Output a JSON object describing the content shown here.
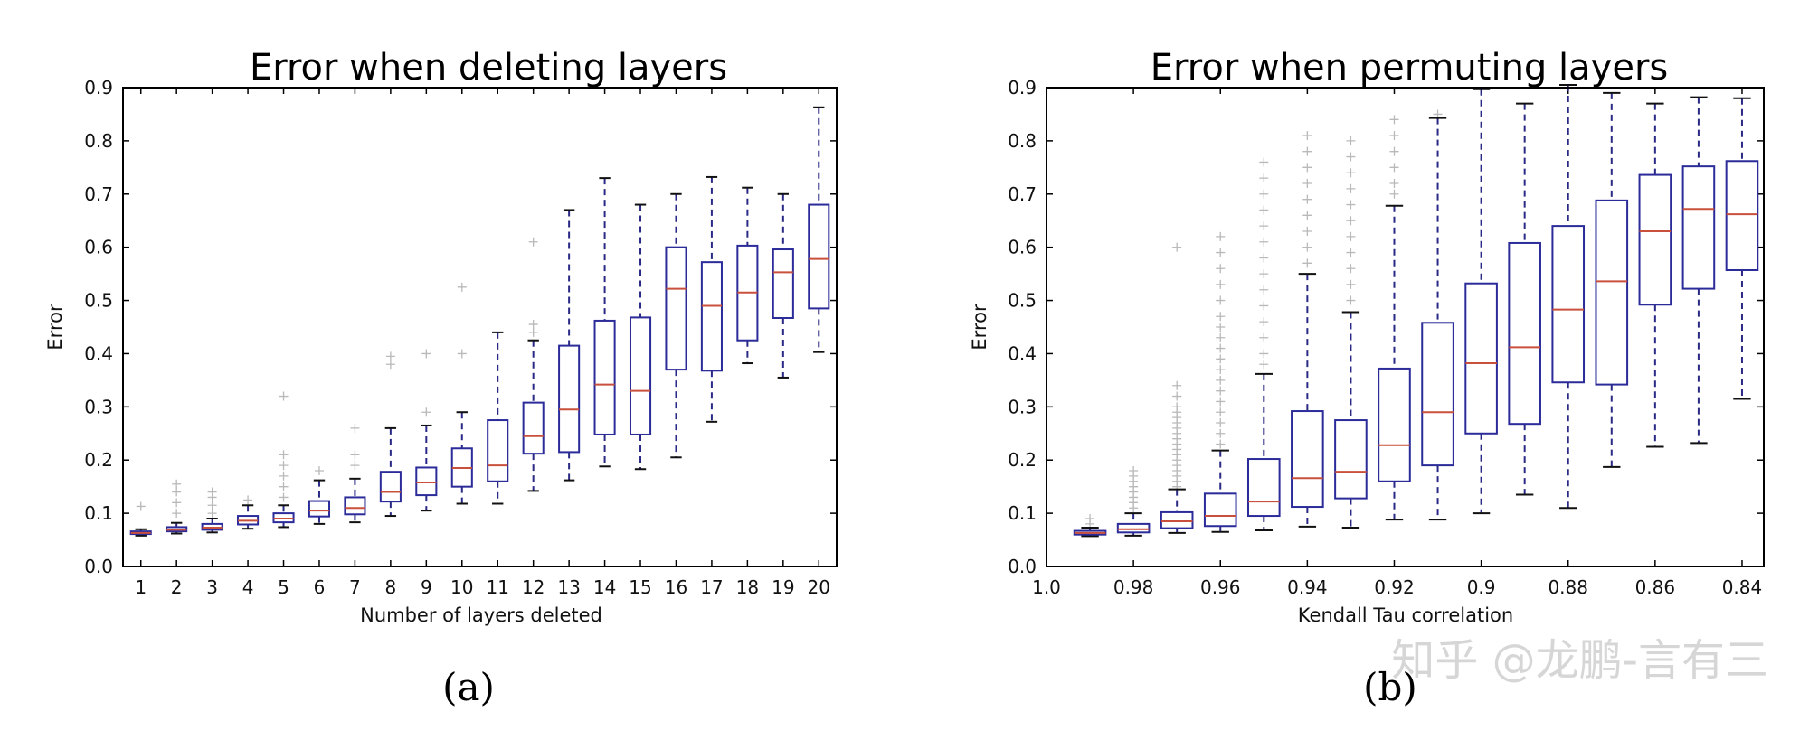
{
  "watermark": "知乎 @龙鹏-言有三",
  "chart_data": [
    {
      "type": "box",
      "title": "Error when deleting layers",
      "xlabel": "Number of layers deleted",
      "ylabel": "Error",
      "caption": "(a)",
      "ylim": [
        0,
        0.9
      ],
      "yticks": [
        "0.0",
        "0.1",
        "0.2",
        "0.3",
        "0.4",
        "0.5",
        "0.6",
        "0.7",
        "0.8",
        "0.9"
      ],
      "categories": [
        "1",
        "2",
        "3",
        "4",
        "5",
        "6",
        "7",
        "8",
        "9",
        "10",
        "11",
        "12",
        "13",
        "14",
        "15",
        "16",
        "17",
        "18",
        "19",
        "20"
      ],
      "boxes": [
        {
          "wlo": 0.058,
          "q1": 0.061,
          "med": 0.063,
          "q3": 0.066,
          "whi": 0.07,
          "out": [
            0.113
          ]
        },
        {
          "wlo": 0.062,
          "q1": 0.066,
          "med": 0.069,
          "q3": 0.074,
          "whi": 0.082,
          "out": [
            0.1,
            0.12,
            0.14,
            0.155
          ]
        },
        {
          "wlo": 0.064,
          "q1": 0.069,
          "med": 0.073,
          "q3": 0.08,
          "whi": 0.09,
          "out": [
            0.1,
            0.115,
            0.13,
            0.14
          ]
        },
        {
          "wlo": 0.071,
          "q1": 0.079,
          "med": 0.086,
          "q3": 0.095,
          "whi": 0.115,
          "out": [
            0.125
          ]
        },
        {
          "wlo": 0.074,
          "q1": 0.083,
          "med": 0.09,
          "q3": 0.1,
          "whi": 0.115,
          "out": [
            0.13,
            0.15,
            0.17,
            0.19,
            0.21,
            0.32
          ]
        },
        {
          "wlo": 0.08,
          "q1": 0.094,
          "med": 0.105,
          "q3": 0.123,
          "whi": 0.162,
          "out": [
            0.18
          ]
        },
        {
          "wlo": 0.083,
          "q1": 0.098,
          "med": 0.11,
          "q3": 0.13,
          "whi": 0.165,
          "out": [
            0.19,
            0.21,
            0.26
          ]
        },
        {
          "wlo": 0.095,
          "q1": 0.122,
          "med": 0.14,
          "q3": 0.178,
          "whi": 0.26,
          "out": [
            0.38,
            0.395
          ]
        },
        {
          "wlo": 0.105,
          "q1": 0.134,
          "med": 0.158,
          "q3": 0.186,
          "whi": 0.265,
          "out": [
            0.29,
            0.4
          ]
        },
        {
          "wlo": 0.118,
          "q1": 0.15,
          "med": 0.185,
          "q3": 0.222,
          "whi": 0.29,
          "out": [
            0.4,
            0.525
          ]
        },
        {
          "wlo": 0.118,
          "q1": 0.16,
          "med": 0.19,
          "q3": 0.275,
          "whi": 0.44,
          "out": []
        },
        {
          "wlo": 0.142,
          "q1": 0.212,
          "med": 0.245,
          "q3": 0.308,
          "whi": 0.425,
          "out": [
            0.44,
            0.455,
            0.61
          ]
        },
        {
          "wlo": 0.162,
          "q1": 0.215,
          "med": 0.295,
          "q3": 0.415,
          "whi": 0.67,
          "out": []
        },
        {
          "wlo": 0.188,
          "q1": 0.248,
          "med": 0.342,
          "q3": 0.462,
          "whi": 0.73,
          "out": []
        },
        {
          "wlo": 0.183,
          "q1": 0.248,
          "med": 0.33,
          "q3": 0.468,
          "whi": 0.68,
          "out": []
        },
        {
          "wlo": 0.205,
          "q1": 0.37,
          "med": 0.522,
          "q3": 0.6,
          "whi": 0.7,
          "out": []
        },
        {
          "wlo": 0.272,
          "q1": 0.368,
          "med": 0.49,
          "q3": 0.572,
          "whi": 0.732,
          "out": []
        },
        {
          "wlo": 0.382,
          "q1": 0.425,
          "med": 0.515,
          "q3": 0.603,
          "whi": 0.712,
          "out": []
        },
        {
          "wlo": 0.355,
          "q1": 0.467,
          "med": 0.553,
          "q3": 0.596,
          "whi": 0.7,
          "out": []
        },
        {
          "wlo": 0.403,
          "q1": 0.485,
          "med": 0.578,
          "q3": 0.68,
          "whi": 0.863,
          "out": []
        }
      ]
    },
    {
      "type": "box",
      "title": "Error when permuting layers",
      "xlabel": "Kendall Tau correlation",
      "ylabel": "Error",
      "caption": "(b)",
      "ylim": [
        0,
        0.9
      ],
      "yticks": [
        "0.0",
        "0.1",
        "0.2",
        "0.3",
        "0.4",
        "0.5",
        "0.6",
        "0.7",
        "0.8",
        "0.9"
      ],
      "xlim": [
        1.0,
        0.835
      ],
      "xticks": [
        {
          "v": 1.0,
          "label": "1.0"
        },
        {
          "v": 0.98,
          "label": "0.98"
        },
        {
          "v": 0.96,
          "label": "0.96"
        },
        {
          "v": 0.94,
          "label": "0.94"
        },
        {
          "v": 0.92,
          "label": "0.92"
        },
        {
          "v": 0.9,
          "label": "0.9"
        },
        {
          "v": 0.88,
          "label": "0.88"
        },
        {
          "v": 0.86,
          "label": "0.86"
        },
        {
          "v": 0.84,
          "label": "0.84"
        }
      ],
      "boxes": [
        {
          "x": 0.99,
          "wlo": 0.057,
          "q1": 0.06,
          "med": 0.063,
          "q3": 0.067,
          "whi": 0.073,
          "out": [
            0.08,
            0.09
          ]
        },
        {
          "x": 0.98,
          "wlo": 0.058,
          "q1": 0.064,
          "med": 0.07,
          "q3": 0.08,
          "whi": 0.1,
          "out": [
            0.11,
            0.12,
            0.13,
            0.14,
            0.15,
            0.16,
            0.17,
            0.18
          ]
        },
        {
          "x": 0.97,
          "wlo": 0.063,
          "q1": 0.072,
          "med": 0.085,
          "q3": 0.102,
          "whi": 0.145,
          "out": [
            0.15,
            0.16,
            0.17,
            0.18,
            0.19,
            0.2,
            0.21,
            0.22,
            0.23,
            0.24,
            0.25,
            0.26,
            0.27,
            0.28,
            0.29,
            0.3,
            0.32,
            0.34,
            0.6
          ]
        },
        {
          "x": 0.96,
          "wlo": 0.065,
          "q1": 0.076,
          "med": 0.095,
          "q3": 0.137,
          "whi": 0.218,
          "out": [
            0.23,
            0.25,
            0.27,
            0.29,
            0.31,
            0.33,
            0.35,
            0.37,
            0.39,
            0.41,
            0.43,
            0.45,
            0.47,
            0.5,
            0.53,
            0.56,
            0.59,
            0.62
          ]
        },
        {
          "x": 0.95,
          "wlo": 0.068,
          "q1": 0.095,
          "med": 0.122,
          "q3": 0.202,
          "whi": 0.362,
          "out": [
            0.38,
            0.4,
            0.43,
            0.46,
            0.49,
            0.52,
            0.55,
            0.58,
            0.61,
            0.64,
            0.67,
            0.7,
            0.73,
            0.76
          ]
        },
        {
          "x": 0.94,
          "wlo": 0.075,
          "q1": 0.112,
          "med": 0.166,
          "q3": 0.292,
          "whi": 0.55,
          "out": [
            0.57,
            0.6,
            0.63,
            0.66,
            0.69,
            0.72,
            0.75,
            0.78,
            0.81
          ]
        },
        {
          "x": 0.93,
          "wlo": 0.073,
          "q1": 0.128,
          "med": 0.178,
          "q3": 0.275,
          "whi": 0.478,
          "out": [
            0.5,
            0.53,
            0.56,
            0.59,
            0.62,
            0.65,
            0.68,
            0.71,
            0.74,
            0.77,
            0.8
          ]
        },
        {
          "x": 0.92,
          "wlo": 0.088,
          "q1": 0.16,
          "med": 0.228,
          "q3": 0.372,
          "whi": 0.678,
          "out": [
            0.7,
            0.72,
            0.75,
            0.78,
            0.81,
            0.84
          ]
        },
        {
          "x": 0.91,
          "wlo": 0.088,
          "q1": 0.19,
          "med": 0.29,
          "q3": 0.458,
          "whi": 0.843,
          "out": [
            0.85
          ]
        },
        {
          "x": 0.9,
          "wlo": 0.1,
          "q1": 0.25,
          "med": 0.382,
          "q3": 0.532,
          "whi": 0.897,
          "out": []
        },
        {
          "x": 0.89,
          "wlo": 0.135,
          "q1": 0.268,
          "med": 0.412,
          "q3": 0.608,
          "whi": 0.87,
          "out": []
        },
        {
          "x": 0.88,
          "wlo": 0.11,
          "q1": 0.346,
          "med": 0.483,
          "q3": 0.64,
          "whi": 0.905,
          "out": []
        },
        {
          "x": 0.87,
          "wlo": 0.187,
          "q1": 0.342,
          "med": 0.536,
          "q3": 0.688,
          "whi": 0.89,
          "out": []
        },
        {
          "x": 0.86,
          "wlo": 0.225,
          "q1": 0.492,
          "med": 0.63,
          "q3": 0.736,
          "whi": 0.87,
          "out": []
        },
        {
          "x": 0.85,
          "wlo": 0.232,
          "q1": 0.522,
          "med": 0.672,
          "q3": 0.752,
          "whi": 0.882,
          "out": []
        },
        {
          "x": 0.84,
          "wlo": 0.315,
          "q1": 0.557,
          "med": 0.662,
          "q3": 0.762,
          "whi": 0.88,
          "out": []
        }
      ]
    }
  ]
}
